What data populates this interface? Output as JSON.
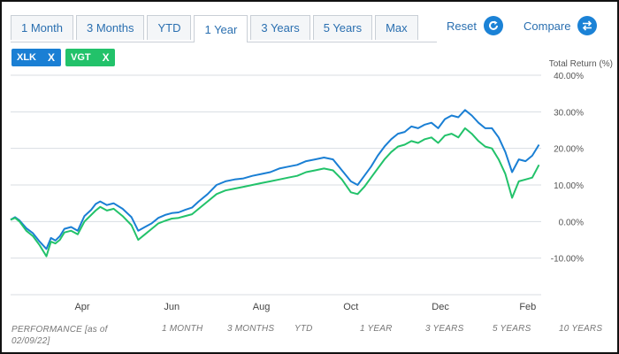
{
  "tabs": [
    {
      "label": "1 Month",
      "active": false
    },
    {
      "label": "3 Months",
      "active": false
    },
    {
      "label": "YTD",
      "active": false
    },
    {
      "label": "1 Year",
      "active": true
    },
    {
      "label": "3 Years",
      "active": false
    },
    {
      "label": "5 Years",
      "active": false
    },
    {
      "label": "Max",
      "active": false
    }
  ],
  "toolbar": {
    "reset_label": "Reset",
    "reset_icon": "refresh-icon",
    "compare_label": "Compare",
    "compare_icon": "swap-arrows-icon"
  },
  "chips": [
    {
      "label": "XLK",
      "close": "X",
      "color": "#1a7fd4"
    },
    {
      "label": "VGT",
      "close": "X",
      "color": "#22c26a"
    }
  ],
  "performance": {
    "header_line1": "PERFORMANCE [as of",
    "header_line2": "02/09/22]",
    "columns": [
      "1 MONTH",
      "3 MONTHS",
      "YTD",
      "1 YEAR",
      "3 YEARS",
      "5 YEARS",
      "10 YEARS"
    ]
  },
  "chart_data": {
    "type": "line",
    "ylabel": "Total Return (%)",
    "ylim": [
      -20,
      40
    ],
    "yticks": [
      40,
      30,
      20,
      10,
      0,
      -10
    ],
    "ytick_labels": [
      "40.00%",
      "30.00%",
      "20.00%",
      "10.00%",
      "0.00%",
      "-10.00%"
    ],
    "x_labels": [
      "Apr",
      "Jun",
      "Aug",
      "Oct",
      "Dec",
      "Feb"
    ],
    "x_label_pos": [
      1.6,
      3.6,
      5.6,
      7.6,
      9.6,
      11.55
    ],
    "xlim": [
      0,
      11.85
    ],
    "grid": true,
    "series": [
      {
        "name": "XLK",
        "color": "#1a7fd4",
        "x": [
          0,
          0.1,
          0.2,
          0.35,
          0.5,
          0.65,
          0.8,
          0.9,
          1.0,
          1.1,
          1.2,
          1.35,
          1.5,
          1.65,
          1.8,
          1.9,
          2.0,
          2.15,
          2.3,
          2.5,
          2.7,
          2.85,
          3.0,
          3.15,
          3.3,
          3.45,
          3.6,
          3.75,
          3.9,
          4.05,
          4.2,
          4.4,
          4.6,
          4.8,
          5.0,
          5.2,
          5.4,
          5.6,
          5.8,
          6.0,
          6.2,
          6.4,
          6.6,
          6.8,
          7.0,
          7.2,
          7.4,
          7.6,
          7.75,
          7.9,
          8.05,
          8.2,
          8.35,
          8.5,
          8.65,
          8.8,
          8.95,
          9.1,
          9.25,
          9.4,
          9.55,
          9.7,
          9.85,
          10.0,
          10.15,
          10.3,
          10.45,
          10.6,
          10.75,
          10.9,
          11.05,
          11.2,
          11.35,
          11.5,
          11.65,
          11.8
        ],
        "values": [
          0.5,
          1.2,
          0.3,
          -1.8,
          -3.2,
          -5.5,
          -7.5,
          -4.5,
          -5.2,
          -4.0,
          -2.0,
          -1.5,
          -2.5,
          1.5,
          3.2,
          4.8,
          5.5,
          4.5,
          5.0,
          3.5,
          1.2,
          -2.5,
          -1.5,
          -0.5,
          1.0,
          1.8,
          2.3,
          2.5,
          3.2,
          3.8,
          5.5,
          7.5,
          10.0,
          11.0,
          11.5,
          11.8,
          12.5,
          13.0,
          13.5,
          14.5,
          15.0,
          15.5,
          16.5,
          17.0,
          17.5,
          17.0,
          14.0,
          11.0,
          10.0,
          12.5,
          15.0,
          18.0,
          20.5,
          22.5,
          24.0,
          24.5,
          26.0,
          25.5,
          26.5,
          27.0,
          25.5,
          28.0,
          29.0,
          28.5,
          30.5,
          29.0,
          27.0,
          25.5,
          25.5,
          23.0,
          19.0,
          13.5,
          17.0,
          16.5,
          18.0,
          21.0
        ]
      },
      {
        "name": "VGT",
        "color": "#22c26a",
        "x": [
          0,
          0.1,
          0.2,
          0.35,
          0.5,
          0.65,
          0.8,
          0.9,
          1.0,
          1.1,
          1.2,
          1.35,
          1.5,
          1.65,
          1.8,
          1.9,
          2.0,
          2.15,
          2.3,
          2.5,
          2.7,
          2.85,
          3.0,
          3.15,
          3.3,
          3.45,
          3.6,
          3.75,
          3.9,
          4.05,
          4.2,
          4.4,
          4.6,
          4.8,
          5.0,
          5.2,
          5.4,
          5.6,
          5.8,
          6.0,
          6.2,
          6.4,
          6.6,
          6.8,
          7.0,
          7.2,
          7.4,
          7.6,
          7.75,
          7.9,
          8.05,
          8.2,
          8.35,
          8.5,
          8.65,
          8.8,
          8.95,
          9.1,
          9.25,
          9.4,
          9.55,
          9.7,
          9.85,
          10.0,
          10.15,
          10.3,
          10.45,
          10.6,
          10.75,
          10.9,
          11.05,
          11.2,
          11.35,
          11.5,
          11.65,
          11.8
        ],
        "values": [
          0.5,
          1.0,
          0.0,
          -2.5,
          -4.0,
          -6.5,
          -9.5,
          -5.5,
          -6.0,
          -5.0,
          -3.0,
          -2.5,
          -3.5,
          0.0,
          1.8,
          3.0,
          4.0,
          3.0,
          3.5,
          1.5,
          -1.0,
          -5.0,
          -3.5,
          -2.0,
          -0.5,
          0.2,
          0.8,
          1.0,
          1.5,
          2.0,
          3.5,
          5.5,
          7.5,
          8.5,
          9.0,
          9.5,
          10.0,
          10.5,
          11.0,
          11.5,
          12.0,
          12.5,
          13.5,
          14.0,
          14.5,
          14.0,
          11.5,
          8.0,
          7.5,
          9.5,
          12.0,
          14.5,
          17.0,
          19.0,
          20.5,
          21.0,
          22.0,
          21.5,
          22.5,
          23.0,
          21.5,
          23.5,
          24.0,
          23.0,
          25.5,
          24.0,
          22.0,
          20.5,
          20.0,
          17.0,
          13.0,
          6.5,
          11.0,
          11.5,
          12.0,
          15.5
        ]
      }
    ]
  }
}
